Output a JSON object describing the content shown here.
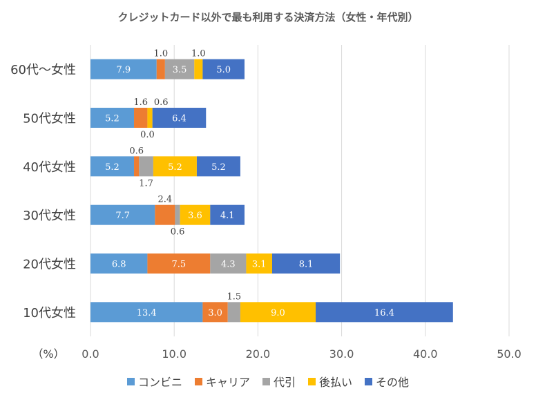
{
  "chart_data": {
    "type": "bar",
    "orientation": "horizontal",
    "stacked": true,
    "title": "クレジットカード以外で最も利用する決済方法（女性・年代別）",
    "xlabel": "（%）",
    "xlim": [
      0,
      50
    ],
    "xticks": [
      "0.0",
      "10.0",
      "20.0",
      "30.0",
      "40.0",
      "50.0"
    ],
    "grid": true,
    "legend_position": "bottom",
    "categories": [
      "60代～女性",
      "50代女性",
      "40代女性",
      "30代女性",
      "20代女性",
      "10代女性"
    ],
    "series": [
      {
        "name": "コンビニ",
        "color": "#5B9BD5",
        "values": [
          7.9,
          5.2,
          5.2,
          7.7,
          6.8,
          13.4
        ]
      },
      {
        "name": "キャリア",
        "color": "#ED7D31",
        "values": [
          1.0,
          1.6,
          0.6,
          2.4,
          7.5,
          3.0
        ]
      },
      {
        "name": "代引",
        "color": "#A5A5A5",
        "values": [
          3.5,
          0.0,
          1.7,
          0.6,
          4.3,
          1.5
        ]
      },
      {
        "name": "後払い",
        "color": "#FFC000",
        "values": [
          1.0,
          0.6,
          5.2,
          3.6,
          3.1,
          9.0
        ]
      },
      {
        "name": "その他",
        "color": "#4472C4",
        "values": [
          5.0,
          6.4,
          5.2,
          4.1,
          8.1,
          16.4
        ]
      }
    ]
  }
}
